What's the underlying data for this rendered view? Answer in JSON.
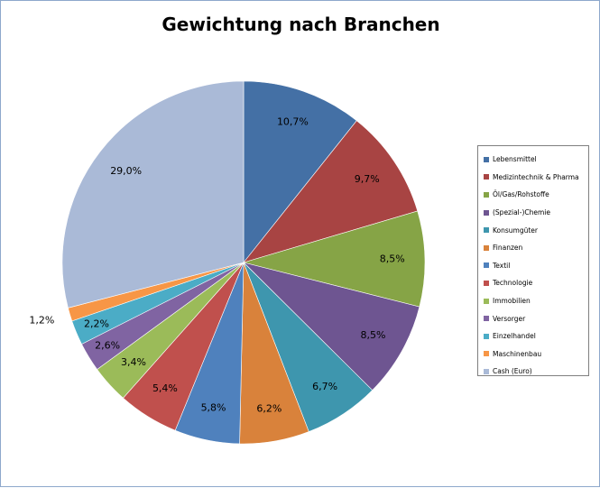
{
  "chart_data": {
    "type": "pie",
    "title": "Gewichtung nach Branchen",
    "legend_position": "right",
    "series": [
      {
        "label": "Lebensmittel",
        "value": 10.7,
        "display": "10,7%",
        "color": "#4470A5"
      },
      {
        "label": "Medizintechnik & Pharma",
        "value": 9.7,
        "display": "9,7%",
        "color": "#A84443"
      },
      {
        "label": "Öl/Gas/Rohstoffe",
        "value": 8.5,
        "display": "8,5%",
        "color": "#86A446"
      },
      {
        "label": "(Spezial-)Chemie",
        "value": 8.5,
        "display": "8,5%",
        "color": "#6E5591"
      },
      {
        "label": "Konsumgüter",
        "value": 6.7,
        "display": "6,7%",
        "color": "#3E96AE"
      },
      {
        "label": "Finanzen",
        "value": 6.2,
        "display": "6,2%",
        "color": "#D9823B"
      },
      {
        "label": "Textil",
        "value": 5.8,
        "display": "5,8%",
        "color": "#4F81BD"
      },
      {
        "label": "Technologie",
        "value": 5.4,
        "display": "5,4%",
        "color": "#C0504D"
      },
      {
        "label": "Immobilien",
        "value": 3.4,
        "display": "3,4%",
        "color": "#9BBB59"
      },
      {
        "label": "Versorger",
        "value": 2.6,
        "display": "2,6%",
        "color": "#8064A2"
      },
      {
        "label": "Einzelhandel",
        "value": 2.2,
        "display": "2,2%",
        "color": "#4BACC6"
      },
      {
        "label": "Maschinenbau",
        "value": 1.2,
        "display": "1,2%",
        "color": "#F79646"
      },
      {
        "label": "Cash (Euro)",
        "value": 29.0,
        "display": "29,0%",
        "color": "#AABAD7"
      }
    ]
  }
}
